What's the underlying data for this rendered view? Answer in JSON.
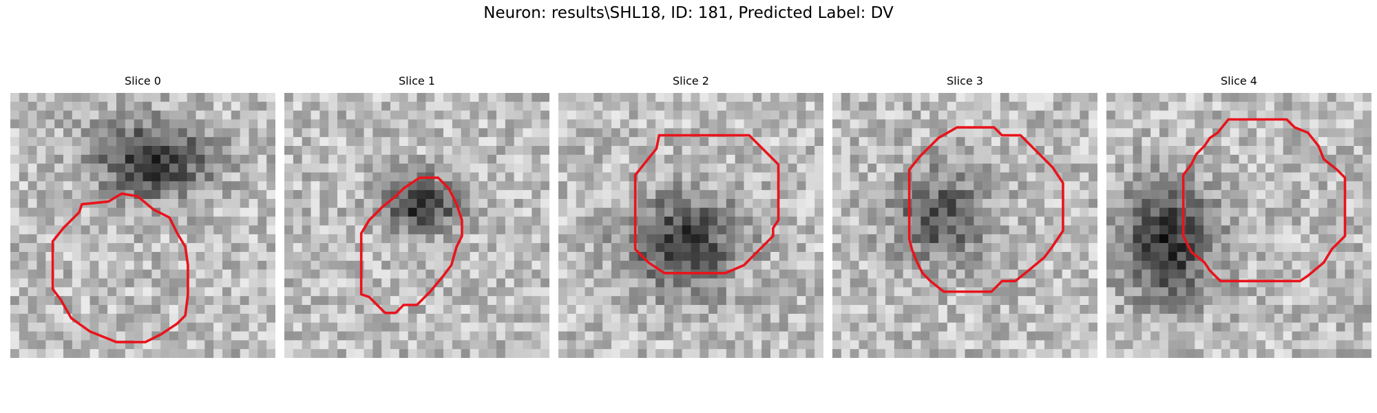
{
  "figure": {
    "title": "Neuron: results\\SHL18, ID: 181, Predicted Label: DV"
  },
  "panels": [
    {
      "title": "Slice 0"
    },
    {
      "title": "Slice 1"
    },
    {
      "title": "Slice 2"
    },
    {
      "title": "Slice 3"
    },
    {
      "title": "Slice 4"
    }
  ],
  "colors": {
    "contour": "#e8141c",
    "background": "#ffffff",
    "text": "#000000"
  }
}
